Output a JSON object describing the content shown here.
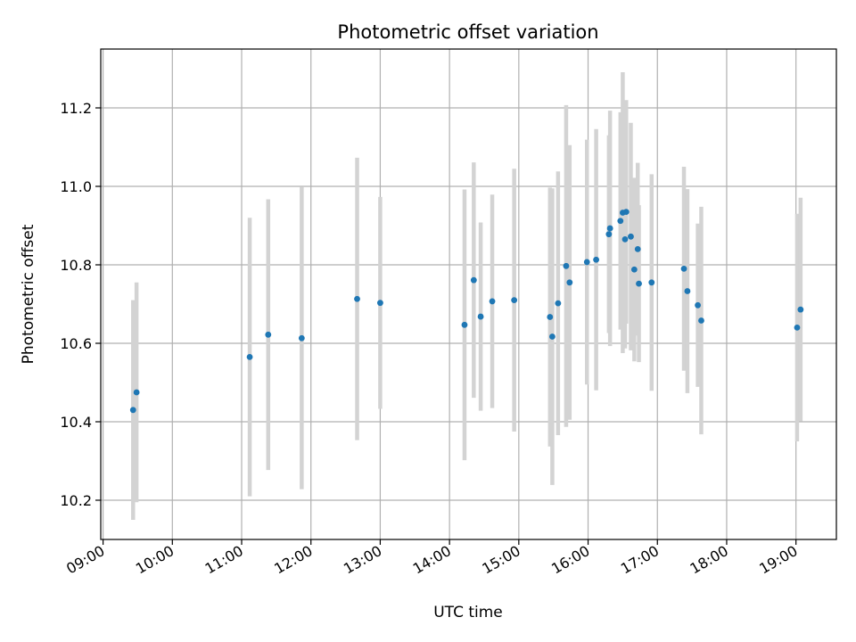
{
  "chart_data": {
    "type": "scatter",
    "title": "Photometric offset variation",
    "xlabel": "UTC time",
    "ylabel": "Photometric offset",
    "x_axis_type": "time",
    "xlim": [
      "08:58",
      "19:35"
    ],
    "ylim": [
      10.1,
      11.35
    ],
    "x_ticks": [
      "09:00",
      "10:00",
      "11:00",
      "12:00",
      "13:00",
      "14:00",
      "15:00",
      "16:00",
      "17:00",
      "18:00",
      "19:00"
    ],
    "y_ticks": [
      "10.2",
      "10.4",
      "10.6",
      "10.8",
      "11.0",
      "11.2"
    ],
    "grid": true,
    "legend": "none",
    "colors": {
      "points": "#1f77b4",
      "errorbars": "#d3d3d3",
      "grid": "#b0b0b0"
    },
    "points": [
      {
        "x": "09:26",
        "y": 10.43,
        "err": 0.28
      },
      {
        "x": "09:29",
        "y": 10.475,
        "err": 0.28
      },
      {
        "x": "11:07",
        "y": 10.565,
        "err": 0.355
      },
      {
        "x": "11:23",
        "y": 10.622,
        "err": 0.345
      },
      {
        "x": "11:52",
        "y": 10.613,
        "err": 0.385
      },
      {
        "x": "12:40",
        "y": 10.713,
        "err": 0.36
      },
      {
        "x": "13:00",
        "y": 10.703,
        "err": 0.27
      },
      {
        "x": "14:13",
        "y": 10.647,
        "err": 0.345
      },
      {
        "x": "14:21",
        "y": 10.761,
        "err": 0.3
      },
      {
        "x": "14:27",
        "y": 10.668,
        "err": 0.24
      },
      {
        "x": "14:37",
        "y": 10.707,
        "err": 0.272
      },
      {
        "x": "14:56",
        "y": 10.71,
        "err": 0.335
      },
      {
        "x": "15:27",
        "y": 10.667,
        "err": 0.33
      },
      {
        "x": "15:29",
        "y": 10.617,
        "err": 0.378
      },
      {
        "x": "15:34",
        "y": 10.702,
        "err": 0.336
      },
      {
        "x": "15:41",
        "y": 10.797,
        "err": 0.41
      },
      {
        "x": "15:44",
        "y": 10.755,
        "err": 0.35
      },
      {
        "x": "15:59",
        "y": 10.807,
        "err": 0.312
      },
      {
        "x": "16:07",
        "y": 10.813,
        "err": 0.333
      },
      {
        "x": "16:18",
        "y": 10.878,
        "err": 0.252
      },
      {
        "x": "16:19",
        "y": 10.893,
        "err": 0.3
      },
      {
        "x": "16:28",
        "y": 10.912,
        "err": 0.277
      },
      {
        "x": "16:30",
        "y": 10.933,
        "err": 0.358
      },
      {
        "x": "16:33",
        "y": 10.935,
        "err": 0.285
      },
      {
        "x": "16:32",
        "y": 10.865,
        "err": 0.278
      },
      {
        "x": "16:37",
        "y": 10.872,
        "err": 0.29
      },
      {
        "x": "16:40",
        "y": 10.788,
        "err": 0.234
      },
      {
        "x": "16:43",
        "y": 10.84,
        "err": 0.22
      },
      {
        "x": "16:44",
        "y": 10.752,
        "err": 0.2
      },
      {
        "x": "16:55",
        "y": 10.755,
        "err": 0.276
      },
      {
        "x": "17:23",
        "y": 10.79,
        "err": 0.26
      },
      {
        "x": "17:26",
        "y": 10.733,
        "err": 0.26
      },
      {
        "x": "17:35",
        "y": 10.697,
        "err": 0.208
      },
      {
        "x": "17:38",
        "y": 10.658,
        "err": 0.29
      },
      {
        "x": "19:01",
        "y": 10.64,
        "err": 0.29
      },
      {
        "x": "19:04",
        "y": 10.686,
        "err": 0.285
      }
    ]
  }
}
